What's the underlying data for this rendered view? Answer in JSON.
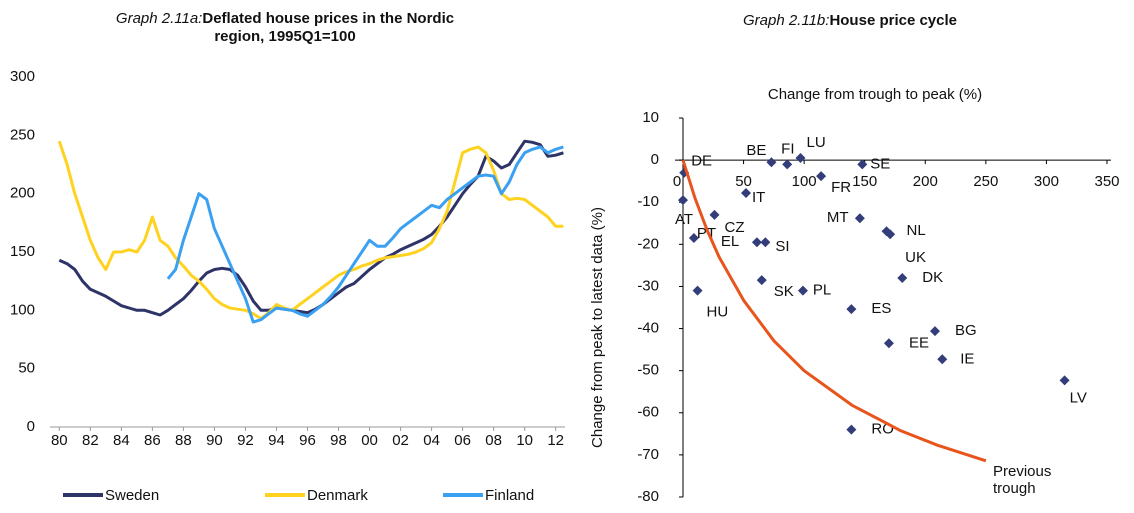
{
  "chart_data": [
    {
      "type": "line",
      "title_prefix": "Graph 2.11a:",
      "title": "Deflated house prices in the Nordic region, 1995Q1=100",
      "x": [
        1980,
        1980.5,
        1981,
        1981.5,
        1982,
        1982.5,
        1983,
        1983.5,
        1984,
        1984.5,
        1985,
        1985.5,
        1986,
        1986.5,
        1987,
        1987.5,
        1988,
        1988.5,
        1989,
        1989.5,
        1990,
        1990.5,
        1991,
        1991.5,
        1992,
        1992.5,
        1993,
        1993.5,
        1994,
        1994.5,
        1995,
        1995.5,
        1996,
        1996.5,
        1997,
        1997.5,
        1998,
        1998.5,
        1999,
        1999.5,
        2000,
        2000.5,
        2001,
        2001.5,
        2002,
        2002.5,
        2003,
        2003.5,
        2004,
        2004.5,
        2005,
        2005.5,
        2006,
        2006.5,
        2007,
        2007.5,
        2008,
        2008.5,
        2009,
        2009.5,
        2010,
        2010.5,
        2011,
        2011.5,
        2012,
        2012.5
      ],
      "xlim": [
        1979.4,
        2012.6
      ],
      "xticks": [
        {
          "value": 1980,
          "label": "80"
        },
        {
          "value": 1982,
          "label": "82"
        },
        {
          "value": 1984,
          "label": "84"
        },
        {
          "value": 1986,
          "label": "86"
        },
        {
          "value": 1988,
          "label": "88"
        },
        {
          "value": 1990,
          "label": "90"
        },
        {
          "value": 1992,
          "label": "92"
        },
        {
          "value": 1994,
          "label": "94"
        },
        {
          "value": 1996,
          "label": "96"
        },
        {
          "value": 1998,
          "label": "98"
        },
        {
          "value": 2000,
          "label": "00"
        },
        {
          "value": 2002,
          "label": "02"
        },
        {
          "value": 2004,
          "label": "04"
        },
        {
          "value": 2006,
          "label": "06"
        },
        {
          "value": 2008,
          "label": "08"
        },
        {
          "value": 2010,
          "label": "10"
        },
        {
          "value": 2012,
          "label": "12"
        }
      ],
      "ylim": [
        0,
        300
      ],
      "yticks": [
        0,
        50,
        100,
        150,
        200,
        250,
        300
      ],
      "legend": "bottom",
      "series": [
        {
          "name": "Sweden",
          "color": "#2e3368",
          "values": [
            143,
            140,
            135,
            125,
            118,
            115,
            112,
            108,
            104,
            102,
            100,
            100,
            98,
            96,
            100,
            105,
            110,
            117,
            125,
            132,
            135,
            136,
            135,
            130,
            120,
            108,
            100,
            100,
            102,
            101,
            100,
            99,
            98,
            101,
            105,
            110,
            115,
            120,
            123,
            129,
            135,
            140,
            145,
            148,
            152,
            155,
            158,
            161,
            165,
            172,
            180,
            190,
            200,
            208,
            215,
            232,
            228,
            222,
            225,
            235,
            245,
            244,
            242,
            232,
            233,
            235
          ]
        },
        {
          "name": "Denmark",
          "color": "#ffd21f",
          "values": [
            245,
            225,
            200,
            180,
            160,
            145,
            135,
            150,
            150,
            152,
            150,
            160,
            180,
            160,
            155,
            145,
            138,
            130,
            125,
            118,
            110,
            105,
            102,
            101,
            100,
            97,
            93,
            98,
            105,
            102,
            100,
            105,
            110,
            115,
            120,
            125,
            130,
            133,
            135,
            138,
            140,
            143,
            145,
            146,
            147,
            148,
            150,
            153,
            158,
            170,
            185,
            210,
            235,
            238,
            240,
            235,
            220,
            200,
            195,
            196,
            195,
            190,
            185,
            180,
            172,
            172
          ]
        },
        {
          "name": "Finland",
          "color": "#3aa0f2",
          "values": [
            null,
            null,
            null,
            null,
            null,
            null,
            null,
            null,
            null,
            null,
            null,
            null,
            null,
            null,
            127,
            135,
            160,
            180,
            200,
            195,
            170,
            155,
            140,
            125,
            110,
            90,
            92,
            97,
            102,
            101,
            100,
            97,
            95,
            100,
            105,
            112,
            120,
            130,
            140,
            150,
            160,
            155,
            155,
            162,
            170,
            175,
            180,
            185,
            190,
            188,
            195,
            200,
            205,
            210,
            215,
            216,
            215,
            200,
            210,
            225,
            235,
            238,
            240,
            235,
            238,
            240
          ]
        }
      ]
    },
    {
      "type": "scatter",
      "title_prefix": "Graph 2.11b:",
      "title": "House price cycle",
      "x_label": "Change from trough to peak (%)",
      "y_label": "Change from peak to latest data (%)",
      "xlim": [
        0,
        350
      ],
      "xticks": [
        0,
        50,
        100,
        150,
        200,
        250,
        300,
        350
      ],
      "ylim": [
        -80,
        10
      ],
      "yticks": [
        10,
        0,
        -10,
        -20,
        -30,
        -40,
        -50,
        -60,
        -70,
        -80
      ],
      "series": [
        {
          "type": "scatter",
          "color": "#333d79",
          "labels": [
            "DE",
            "AT",
            "PT",
            "HU",
            "CZ",
            "EL",
            "SI",
            "IT",
            "BE",
            "FI",
            "LU",
            "FR",
            "SE",
            "MT",
            "NL",
            "UK",
            "DK",
            "SK",
            "PL",
            "ES",
            "EE",
            "BG",
            "IE",
            "LV",
            "RO"
          ],
          "x": [
            1,
            0,
            9,
            12,
            26,
            61,
            68,
            52,
            73,
            86,
            97,
            114,
            148,
            146,
            168,
            171,
            181,
            65,
            99,
            139,
            170,
            208,
            214,
            315,
            139
          ],
          "values": [
            -3,
            -9.5,
            -18.5,
            -31,
            -13,
            -19.5,
            -19.5,
            -7.8,
            -0.5,
            -1,
            0.5,
            -3.8,
            -1,
            -13.8,
            -16.9,
            -17.6,
            -28,
            -28.5,
            -31,
            -35.4,
            -43.5,
            -40.6,
            -47.3,
            -52.3,
            -64
          ]
        },
        {
          "type": "line",
          "name": "Previous trough",
          "color": "#e8541c",
          "x": [
            0,
            10,
            20,
            30,
            50,
            75,
            100,
            140,
            180,
            210,
            250
          ],
          "values": [
            0,
            -9.1,
            -16.7,
            -23.1,
            -33.3,
            -42.9,
            -50,
            -58.3,
            -64.3,
            -67.7,
            -71.4
          ]
        }
      ]
    }
  ]
}
